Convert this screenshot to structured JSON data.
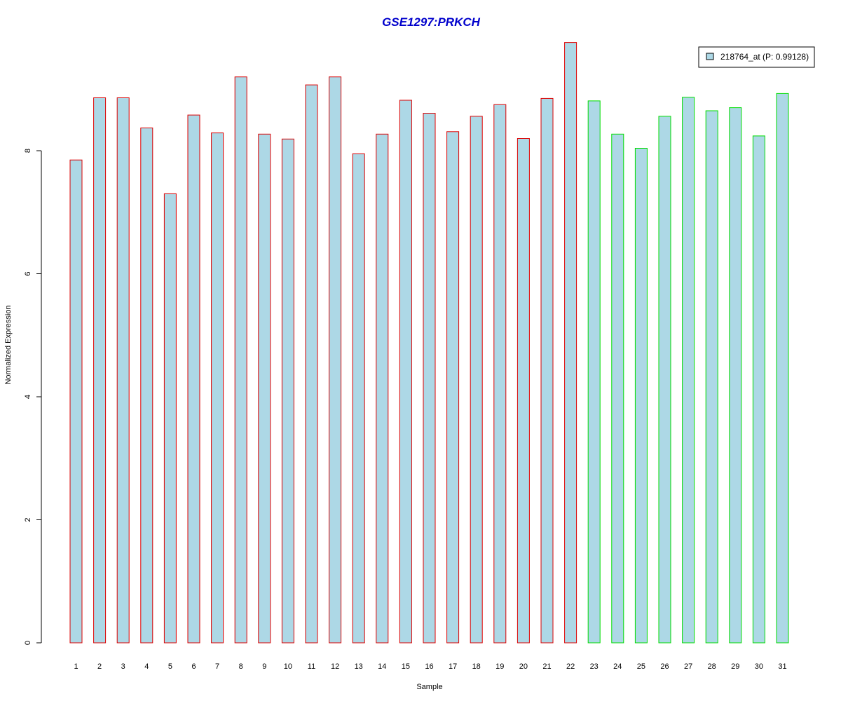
{
  "chart_data": {
    "type": "bar",
    "title": "GSE1297:PRKCH",
    "title_color": "#0000cc",
    "xlabel": "Sample",
    "ylabel": "Normalized Expression",
    "ylim": [
      0,
      9.8
    ],
    "yticks": [
      0,
      2,
      4,
      6,
      8
    ],
    "grid": false,
    "legend_position": "top-right",
    "bar_fill_color": "#add8e6",
    "categories": [
      "1",
      "2",
      "3",
      "4",
      "5",
      "6",
      "7",
      "8",
      "9",
      "10",
      "11",
      "12",
      "13",
      "14",
      "15",
      "16",
      "17",
      "18",
      "19",
      "20",
      "21",
      "22",
      "23",
      "24",
      "25",
      "26",
      "27",
      "28",
      "29",
      "30",
      "31"
    ],
    "values": [
      7.85,
      8.86,
      8.86,
      8.37,
      7.3,
      8.58,
      8.29,
      9.2,
      8.27,
      8.19,
      9.07,
      9.2,
      7.95,
      8.27,
      8.82,
      8.61,
      8.31,
      8.56,
      8.75,
      8.2,
      8.85,
      9.76,
      8.81,
      8.27,
      8.04,
      8.56,
      8.87,
      8.65,
      8.7,
      8.24,
      8.93
    ],
    "groups": [
      {
        "border_color": "#dd0000",
        "samples": [
          "1",
          "2",
          "3",
          "4",
          "5",
          "6",
          "7",
          "8",
          "9",
          "10",
          "11",
          "12",
          "13",
          "14",
          "15",
          "16",
          "17",
          "18",
          "19",
          "20",
          "21",
          "22"
        ]
      },
      {
        "border_color": "#00dd00",
        "samples": [
          "23",
          "24",
          "25",
          "26",
          "27",
          "28",
          "29",
          "30",
          "31"
        ]
      }
    ],
    "series": [
      {
        "name": "218764_at (P: 0.99128)",
        "values": [
          7.85,
          8.86,
          8.86,
          8.37,
          7.3,
          8.58,
          8.29,
          9.2,
          8.27,
          8.19,
          9.07,
          9.2,
          7.95,
          8.27,
          8.82,
          8.61,
          8.31,
          8.56,
          8.75,
          8.2,
          8.85,
          9.76,
          8.81,
          8.27,
          8.04,
          8.56,
          8.87,
          8.65,
          8.7,
          8.24,
          8.93
        ]
      }
    ]
  }
}
